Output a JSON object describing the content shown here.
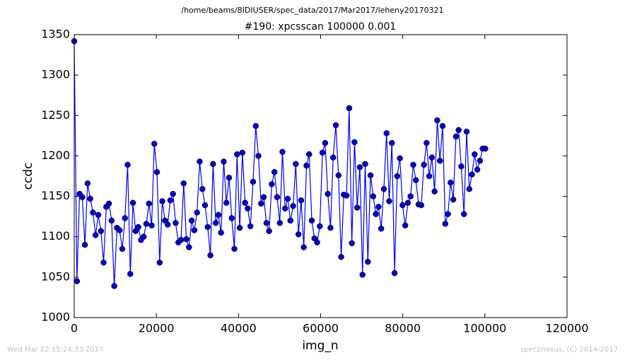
{
  "chart_data": {
    "type": "line",
    "header": "/home/beams/8IDIUSER/spec_data/2017/Mar2017/leheny20170321",
    "title": "#190: xpcsscan 100000 0.001",
    "x_label": "img_n",
    "y_label": "ccdc",
    "footer_left": "Wed Mar 22 15:24:33 2017",
    "footer_right": "spec2nexus, (C) 2014-2017",
    "x": [
      0,
      650,
      1300,
      1950,
      2600,
      3250,
      3900,
      4550,
      5200,
      5850,
      6500,
      7150,
      7800,
      8450,
      9100,
      9750,
      10400,
      11050,
      11700,
      12350,
      13000,
      13650,
      14300,
      14950,
      15600,
      16250,
      16900,
      17550,
      18200,
      18850,
      19500,
      20150,
      20800,
      21450,
      22100,
      22750,
      23400,
      24050,
      24700,
      25350,
      26000,
      26650,
      27300,
      27950,
      28600,
      29250,
      29900,
      30550,
      31200,
      31850,
      32500,
      33150,
      33800,
      34450,
      35100,
      35750,
      36400,
      37050,
      37700,
      38350,
      39000,
      39650,
      40300,
      40950,
      41600,
      42250,
      42900,
      43550,
      44200,
      44850,
      45500,
      46150,
      46800,
      47450,
      48100,
      48750,
      49400,
      50050,
      50700,
      51350,
      52000,
      52650,
      53300,
      53950,
      54600,
      55250,
      55900,
      56550,
      57200,
      57850,
      58500,
      59150,
      59800,
      60450,
      61100,
      61750,
      62400,
      63050,
      63700,
      64350,
      65000,
      65650,
      66300,
      66950,
      67600,
      68250,
      68900,
      69550,
      70200,
      70850,
      71500,
      72150,
      72800,
      73450,
      74100,
      74750,
      75400,
      76050,
      76700,
      77350,
      78000,
      78650,
      79300,
      79950,
      80600,
      81250,
      81900,
      82550,
      83200,
      83850,
      84500,
      85150,
      85800,
      86450,
      87100,
      87750,
      88400,
      89050,
      89700,
      90350,
      91000,
      91650,
      92300,
      92950,
      93600,
      94250,
      94900,
      95550,
      96200,
      96850,
      97500,
      98150,
      98800,
      99450,
      100100
    ],
    "series": [
      {
        "color": "#0000ff",
        "marker_color": "#0000cc",
        "values": [
          1342,
          1045,
          1153,
          1149,
          1090,
          1166,
          1147,
          1130,
          1102,
          1127,
          1107,
          1068,
          1137,
          1141,
          1120,
          1039,
          1111,
          1108,
          1085,
          1123,
          1189,
          1054,
          1142,
          1107,
          1112,
          1096,
          1100,
          1116,
          1141,
          1114,
          1215,
          1180,
          1068,
          1144,
          1120,
          1115,
          1145,
          1153,
          1117,
          1093,
          1096,
          1166,
          1097,
          1087,
          1120,
          1108,
          1130,
          1193,
          1159,
          1139,
          1112,
          1077,
          1190,
          1117,
          1127,
          1105,
          1193,
          1142,
          1173,
          1123,
          1085,
          1202,
          1111,
          1204,
          1142,
          1135,
          1113,
          1168,
          1237,
          1200,
          1141,
          1149,
          1117,
          1107,
          1165,
          1180,
          1149,
          1117,
          1205,
          1135,
          1147,
          1120,
          1138,
          1190,
          1103,
          1145,
          1087,
          1188,
          1202,
          1120,
          1098,
          1093,
          1113,
          1204,
          1216,
          1153,
          1111,
          1198,
          1238,
          1176,
          1075,
          1152,
          1151,
          1259,
          1092,
          1217,
          1136,
          1186,
          1053,
          1190,
          1069,
          1176,
          1150,
          1128,
          1137,
          1110,
          1159,
          1228,
          1144,
          1216,
          1055,
          1175,
          1197,
          1139,
          1114,
          1142,
          1150,
          1189,
          1170,
          1140,
          1139,
          1189,
          1216,
          1175,
          1198,
          1156,
          1244,
          1194,
          1237,
          1116,
          1128,
          1167,
          1146,
          1224,
          1232,
          1187,
          1128,
          1230,
          1159,
          1177,
          1202,
          1183,
          1194,
          1209,
          1209
        ]
      }
    ],
    "xlim": [
      0,
      120000
    ],
    "xticks": [
      0,
      20000,
      40000,
      60000,
      80000,
      100000,
      120000
    ],
    "ylim": [
      1000,
      1350
    ],
    "yticks": [
      1000,
      1050,
      1100,
      1150,
      1200,
      1250,
      1300,
      1350
    ]
  }
}
